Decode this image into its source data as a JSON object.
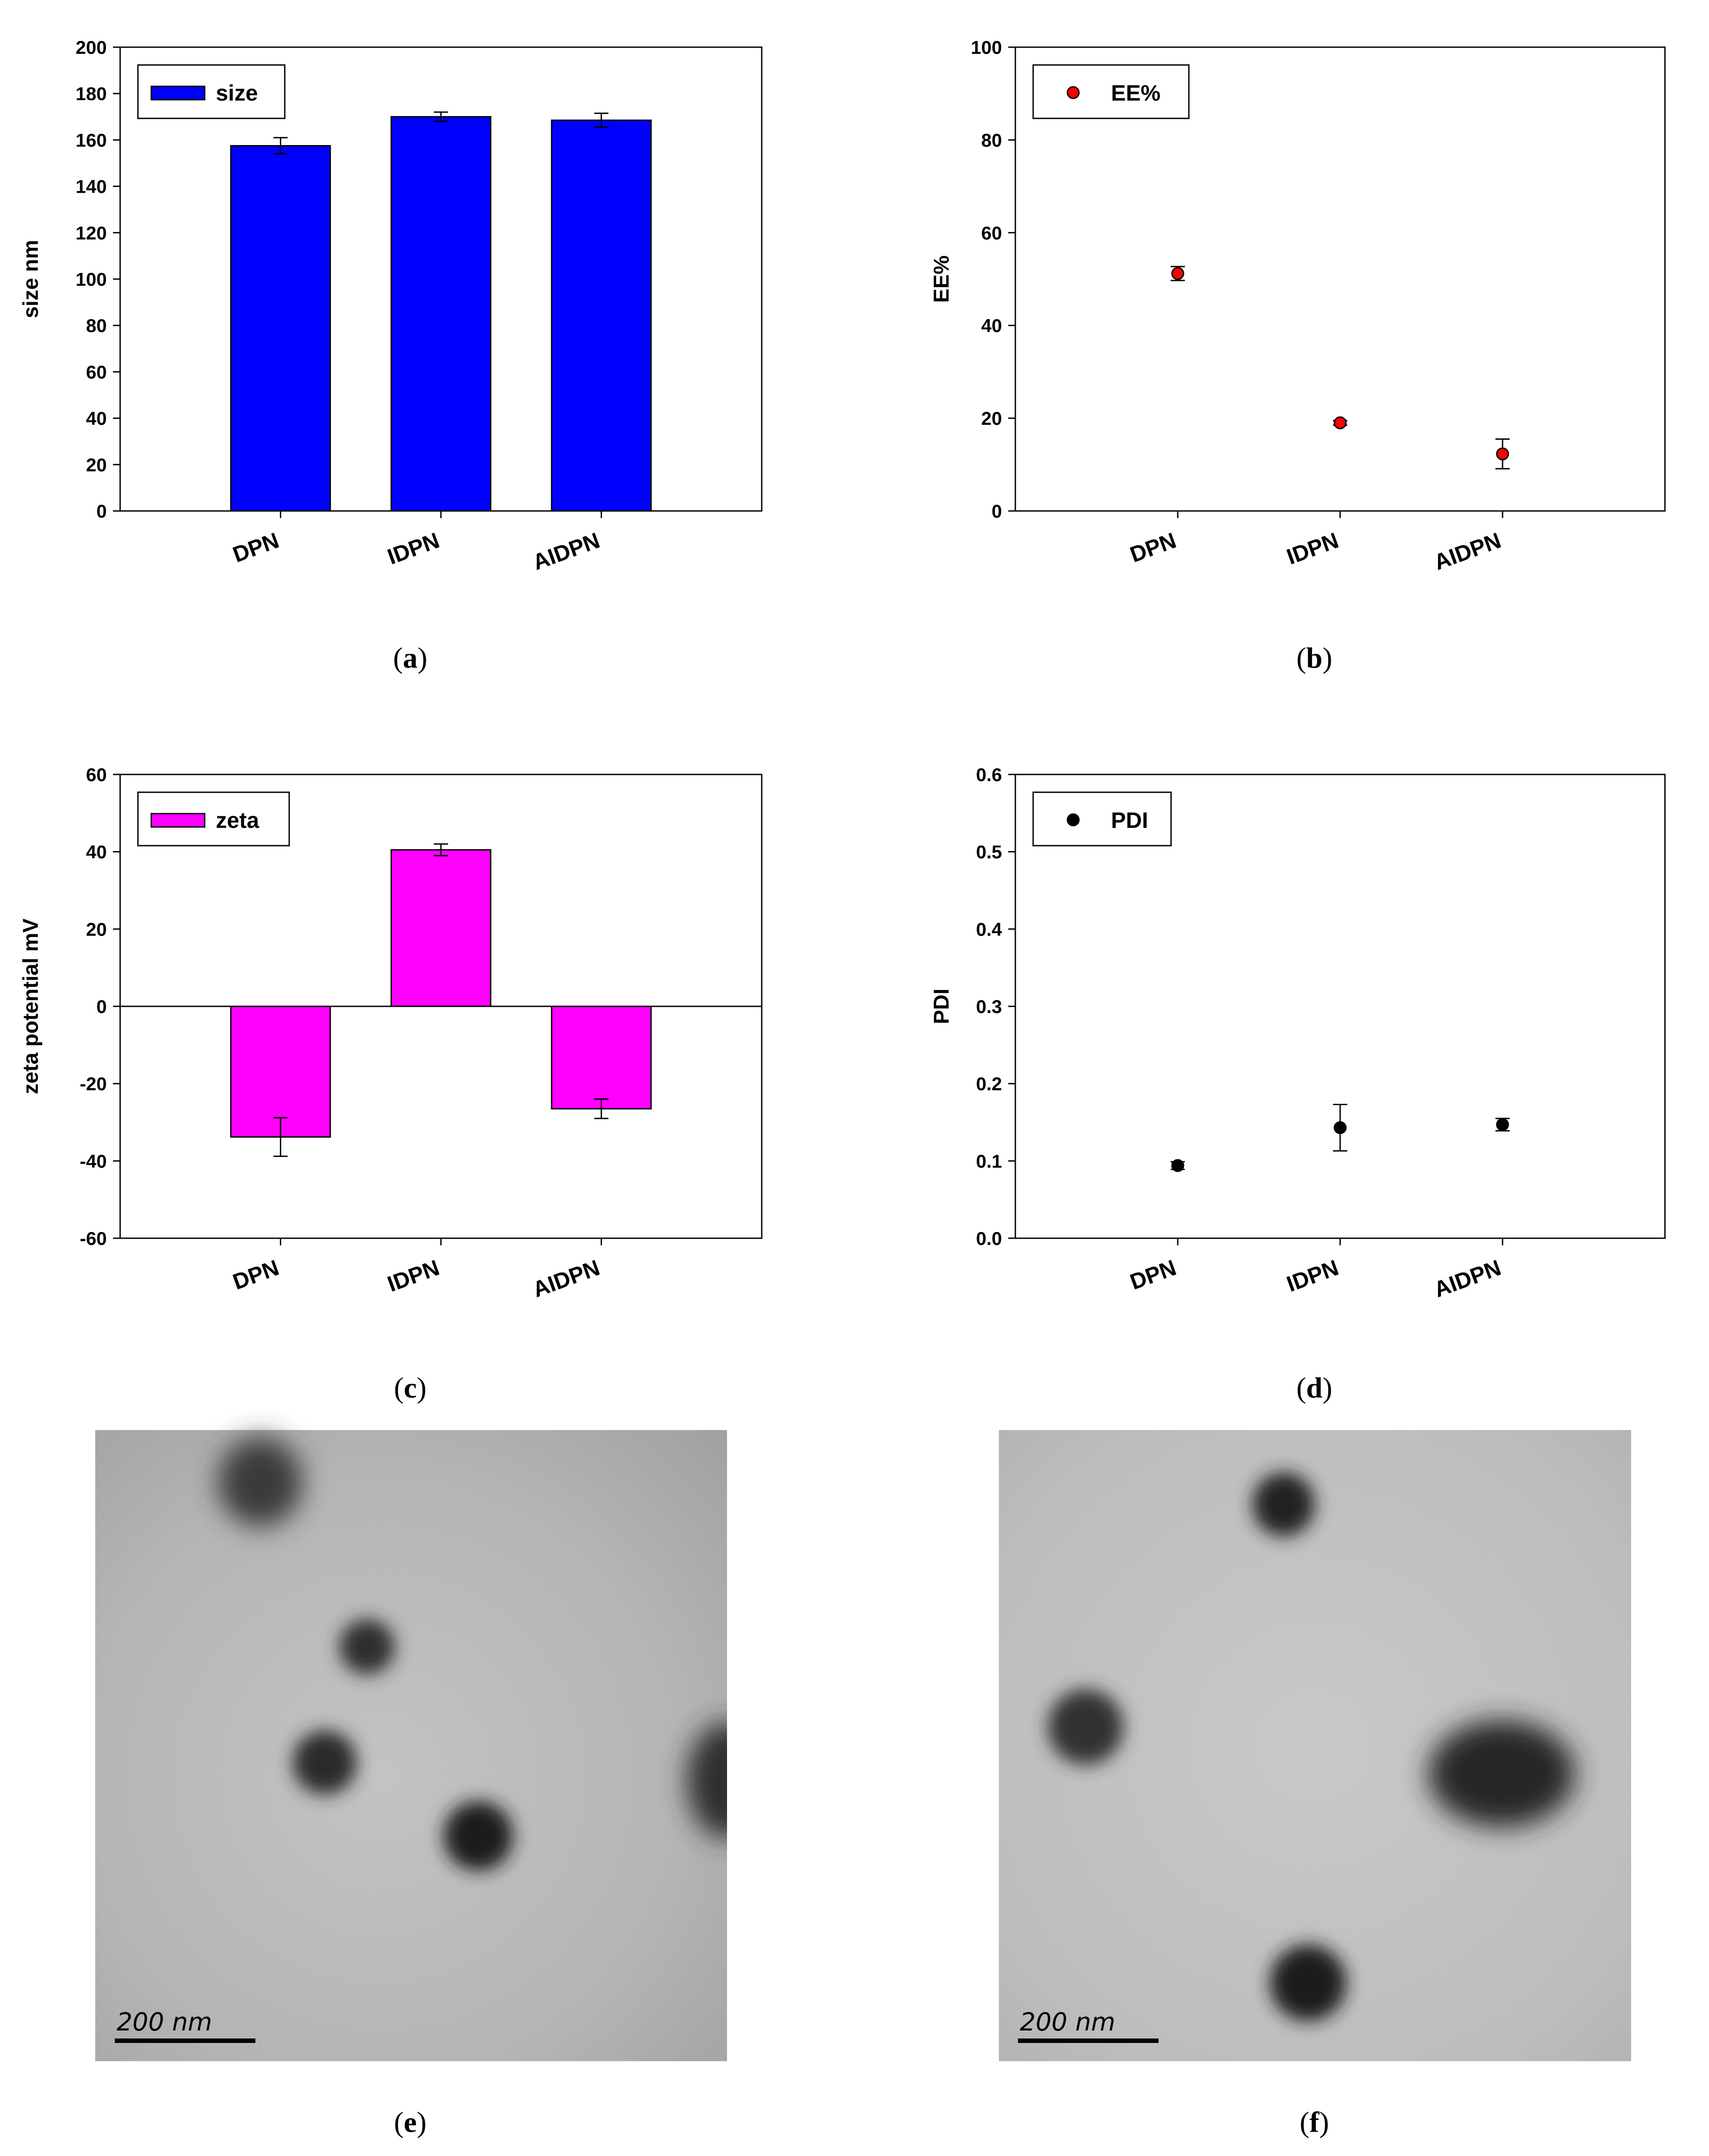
{
  "chart_data": [
    {
      "id": "a",
      "type": "bar",
      "caption_letter": "a",
      "categories": [
        "DPN",
        "IDPN",
        "AIDPN"
      ],
      "series": [
        {
          "name": "size",
          "values": [
            157.5,
            170.0,
            168.5
          ],
          "errors": [
            3.5,
            2.0,
            3.0
          ]
        }
      ],
      "ylabel": "size nm",
      "ylim": [
        0,
        200
      ],
      "yticks": [
        0,
        20,
        40,
        60,
        80,
        100,
        120,
        140,
        160,
        180,
        200
      ],
      "color": "#0000ff",
      "legend": "top-left"
    },
    {
      "id": "b",
      "type": "scatter",
      "caption_letter": "b",
      "categories": [
        "DPN",
        "IDPN",
        "AIDPN"
      ],
      "series": [
        {
          "name": "EE%",
          "values": [
            51.2,
            19.0,
            12.3
          ],
          "errors": [
            1.5,
            0.5,
            3.2
          ]
        }
      ],
      "ylabel": "EE%",
      "ylim": [
        0,
        100
      ],
      "yticks": [
        0,
        20,
        40,
        60,
        80,
        100
      ],
      "color": "#ff0000",
      "legend": "top-left"
    },
    {
      "id": "c",
      "type": "bar",
      "caption_letter": "c",
      "categories": [
        "DPN",
        "IDPN",
        "AIDPN"
      ],
      "series": [
        {
          "name": "zeta",
          "values": [
            -33.8,
            40.5,
            -26.5
          ],
          "errors": [
            5.0,
            1.5,
            2.5
          ]
        }
      ],
      "ylabel": "zeta potential mV",
      "ylim": [
        -60,
        60
      ],
      "yticks": [
        -60,
        -40,
        -20,
        0,
        20,
        40,
        60
      ],
      "color": "#ff00ff",
      "legend": "top-left"
    },
    {
      "id": "d",
      "type": "scatter",
      "caption_letter": "d",
      "categories": [
        "DPN",
        "IDPN",
        "AIDPN"
      ],
      "series": [
        {
          "name": "PDI",
          "values": [
            0.094,
            0.143,
            0.147
          ],
          "errors": [
            0.005,
            0.03,
            0.008
          ]
        }
      ],
      "ylabel": "PDI",
      "ylim": [
        0,
        0.6
      ],
      "yticks": [
        "0.0",
        "0.1",
        "0.2",
        "0.3",
        "0.4",
        "0.5",
        "0.6"
      ],
      "color": "#000000",
      "legend": "top-left"
    }
  ],
  "images": [
    {
      "id": "e",
      "caption_letter": "e",
      "scale_label": "200 nm"
    },
    {
      "id": "f",
      "caption_letter": "f",
      "scale_label": "200 nm"
    }
  ]
}
